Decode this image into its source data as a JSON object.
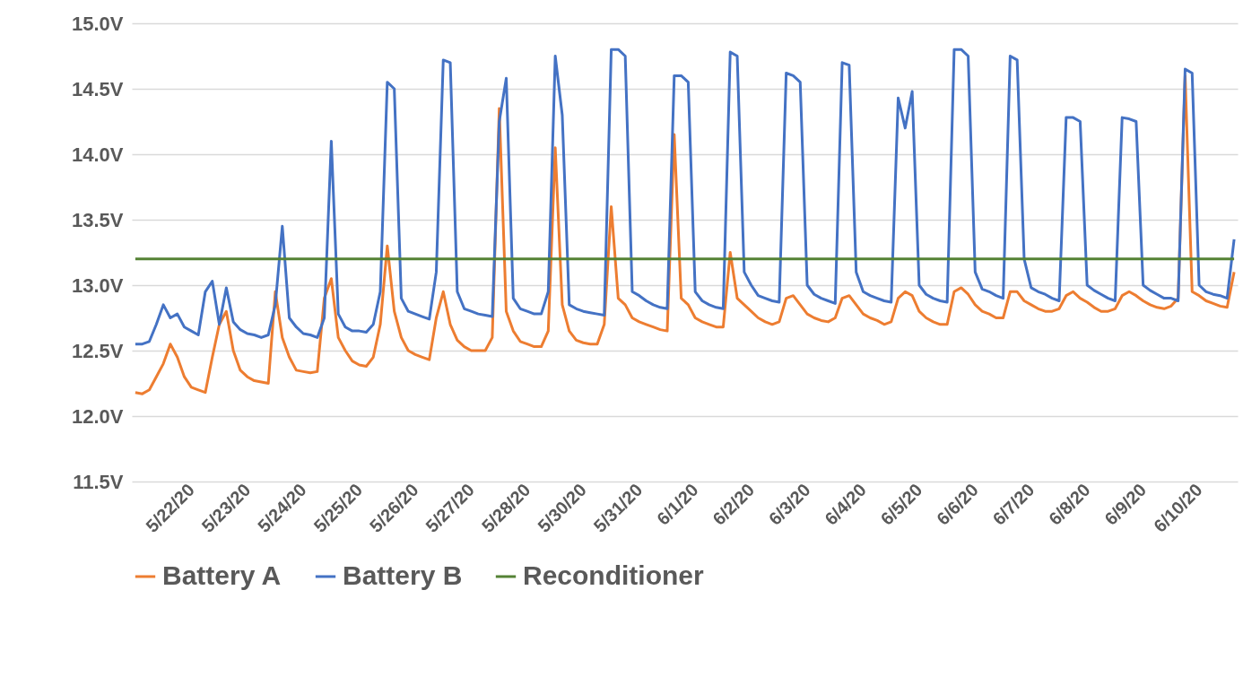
{
  "chart_data": {
    "type": "line",
    "categories": [
      null,
      null,
      null,
      null,
      null,
      null,
      null,
      null,
      "5/22/20",
      null,
      null,
      null,
      null,
      null,
      null,
      null,
      "5/23/20",
      null,
      null,
      null,
      null,
      null,
      null,
      null,
      "5/24/20",
      null,
      null,
      null,
      null,
      null,
      null,
      null,
      "5/25/20",
      null,
      null,
      null,
      null,
      null,
      null,
      null,
      "5/26/20",
      null,
      null,
      null,
      null,
      null,
      null,
      null,
      "5/27/20",
      null,
      null,
      null,
      null,
      null,
      null,
      null,
      "5/28/20",
      null,
      null,
      null,
      null,
      null,
      null,
      null,
      "5/30/20",
      null,
      null,
      null,
      null,
      null,
      null,
      null,
      "5/31/20",
      null,
      null,
      null,
      null,
      null,
      null,
      null,
      "6/1/20",
      null,
      null,
      null,
      null,
      null,
      null,
      null,
      "6/2/20",
      null,
      null,
      null,
      null,
      null,
      null,
      null,
      "6/3/20",
      null,
      null,
      null,
      null,
      null,
      null,
      null,
      "6/4/20",
      null,
      null,
      null,
      null,
      null,
      null,
      null,
      "6/5/20",
      null,
      null,
      null,
      null,
      null,
      null,
      null,
      "6/6/20",
      null,
      null,
      null,
      null,
      null,
      null,
      null,
      "6/7/20",
      null,
      null,
      null,
      null,
      null,
      null,
      null,
      "6/8/20",
      null,
      null,
      null,
      null,
      null,
      null,
      null,
      "6/9/20",
      null,
      null,
      null,
      null,
      null,
      null,
      null,
      "6/10/20",
      null,
      null,
      null,
      null,
      null
    ],
    "series": [
      {
        "name": "Battery A",
        "color": "#ed7d31",
        "values": [
          12.18,
          12.17,
          12.2,
          12.3,
          12.4,
          12.55,
          12.45,
          12.3,
          12.22,
          12.2,
          12.18,
          12.45,
          12.7,
          12.8,
          12.5,
          12.35,
          12.3,
          12.27,
          12.26,
          12.25,
          12.95,
          12.6,
          12.45,
          12.35,
          12.34,
          12.33,
          12.34,
          12.9,
          13.05,
          12.6,
          12.5,
          12.42,
          12.39,
          12.38,
          12.45,
          12.7,
          13.3,
          12.8,
          12.6,
          12.5,
          12.47,
          12.45,
          12.43,
          12.75,
          12.95,
          12.7,
          12.58,
          12.53,
          12.5,
          12.5,
          12.5,
          12.6,
          14.35,
          12.8,
          12.65,
          12.57,
          12.55,
          12.53,
          12.53,
          12.65,
          14.05,
          12.85,
          12.65,
          12.58,
          12.56,
          12.55,
          12.55,
          12.7,
          13.6,
          12.9,
          12.85,
          12.75,
          12.72,
          12.7,
          12.68,
          12.66,
          12.65,
          14.15,
          12.9,
          12.85,
          12.75,
          12.72,
          12.7,
          12.68,
          12.68,
          13.25,
          12.9,
          12.85,
          12.8,
          12.75,
          12.72,
          12.7,
          12.72,
          12.9,
          12.92,
          12.85,
          12.78,
          12.75,
          12.73,
          12.72,
          12.75,
          12.9,
          12.92,
          12.85,
          12.78,
          12.75,
          12.73,
          12.7,
          12.72,
          12.9,
          12.95,
          12.92,
          12.8,
          12.75,
          12.72,
          12.7,
          12.7,
          12.95,
          12.98,
          12.93,
          12.85,
          12.8,
          12.78,
          12.75,
          12.75,
          12.95,
          12.95,
          12.88,
          12.85,
          12.82,
          12.8,
          12.8,
          12.82,
          12.92,
          12.95,
          12.9,
          12.87,
          12.83,
          12.8,
          12.8,
          12.82,
          12.92,
          12.95,
          12.92,
          12.88,
          12.85,
          12.83,
          12.82,
          12.84,
          12.9,
          14.6,
          12.95,
          12.92,
          12.88,
          12.86,
          12.84,
          12.83,
          13.1
        ]
      },
      {
        "name": "Battery B",
        "color": "#4472c4",
        "values": [
          12.55,
          12.55,
          12.57,
          12.7,
          12.85,
          12.75,
          12.78,
          12.68,
          12.65,
          12.62,
          12.95,
          13.03,
          12.7,
          12.98,
          12.72,
          12.66,
          12.63,
          12.62,
          12.6,
          12.62,
          12.85,
          13.45,
          12.75,
          12.68,
          12.63,
          12.62,
          12.6,
          12.75,
          14.1,
          12.78,
          12.68,
          12.65,
          12.65,
          12.64,
          12.7,
          12.95,
          14.55,
          14.5,
          12.9,
          12.8,
          12.78,
          12.76,
          12.74,
          13.1,
          14.72,
          14.7,
          12.95,
          12.82,
          12.8,
          12.78,
          12.77,
          12.76,
          14.25,
          14.58,
          12.9,
          12.82,
          12.8,
          12.78,
          12.78,
          12.95,
          14.75,
          14.3,
          12.85,
          12.82,
          12.8,
          12.79,
          12.78,
          12.77,
          14.8,
          14.8,
          14.75,
          12.95,
          12.92,
          12.88,
          12.85,
          12.83,
          12.82,
          14.6,
          14.6,
          14.55,
          12.95,
          12.88,
          12.85,
          12.83,
          12.82,
          14.78,
          14.75,
          13.1,
          13.0,
          12.92,
          12.9,
          12.88,
          12.87,
          14.62,
          14.6,
          14.55,
          13.0,
          12.93,
          12.9,
          12.88,
          12.86,
          14.7,
          14.68,
          13.1,
          12.95,
          12.92,
          12.9,
          12.88,
          12.87,
          14.43,
          14.2,
          14.48,
          13.0,
          12.93,
          12.9,
          12.88,
          12.87,
          14.8,
          14.8,
          14.75,
          13.1,
          12.97,
          12.95,
          12.92,
          12.9,
          14.75,
          14.72,
          13.2,
          12.98,
          12.95,
          12.93,
          12.9,
          12.88,
          14.28,
          14.28,
          14.25,
          13.0,
          12.96,
          12.93,
          12.9,
          12.88,
          14.28,
          14.27,
          14.25,
          13.0,
          12.96,
          12.93,
          12.9,
          12.9,
          12.88,
          14.65,
          14.62,
          13.0,
          12.95,
          12.93,
          12.92,
          12.9,
          13.35
        ]
      },
      {
        "name": "Reconditioner",
        "color": "#548235",
        "values": [
          13.2,
          13.2,
          13.2,
          13.2,
          13.2,
          13.2,
          13.2,
          13.2,
          13.2,
          13.2,
          13.2,
          13.2,
          13.2,
          13.2,
          13.2,
          13.2,
          13.2,
          13.2,
          13.2,
          13.2,
          13.2,
          13.2,
          13.2,
          13.2,
          13.2,
          13.2,
          13.2,
          13.2,
          13.2,
          13.2,
          13.2,
          13.2,
          13.2,
          13.2,
          13.2,
          13.2,
          13.2,
          13.2,
          13.2,
          13.2,
          13.2,
          13.2,
          13.2,
          13.2,
          13.2,
          13.2,
          13.2,
          13.2,
          13.2,
          13.2,
          13.2,
          13.2,
          13.2,
          13.2,
          13.2,
          13.2,
          13.2,
          13.2,
          13.2,
          13.2,
          13.2,
          13.2,
          13.2,
          13.2,
          13.2,
          13.2,
          13.2,
          13.2,
          13.2,
          13.2,
          13.2,
          13.2,
          13.2,
          13.2,
          13.2,
          13.2,
          13.2,
          13.2,
          13.2,
          13.2,
          13.2,
          13.2,
          13.2,
          13.2,
          13.2,
          13.2,
          13.2,
          13.2,
          13.2,
          13.2,
          13.2,
          13.2,
          13.2,
          13.2,
          13.2,
          13.2,
          13.2,
          13.2,
          13.2,
          13.2,
          13.2,
          13.2,
          13.2,
          13.2,
          13.2,
          13.2,
          13.2,
          13.2,
          13.2,
          13.2,
          13.2,
          13.2,
          13.2,
          13.2,
          13.2,
          13.2,
          13.2,
          13.2,
          13.2,
          13.2,
          13.2,
          13.2,
          13.2,
          13.2,
          13.2,
          13.2,
          13.2,
          13.2,
          13.2,
          13.2,
          13.2,
          13.2,
          13.2,
          13.2,
          13.2,
          13.2,
          13.2,
          13.2,
          13.2,
          13.2,
          13.2,
          13.2,
          13.2,
          13.2,
          13.2,
          13.2,
          13.2,
          13.2,
          13.2,
          13.2,
          13.2,
          13.2,
          13.2,
          13.2,
          13.2,
          13.2,
          13.2,
          13.2
        ]
      }
    ],
    "ylim": [
      11.5,
      15.0
    ],
    "yticks": [
      {
        "value": 11.5,
        "label": "11.5V"
      },
      {
        "value": 12.0,
        "label": "12.0V"
      },
      {
        "value": 12.5,
        "label": "12.5V"
      },
      {
        "value": 13.0,
        "label": "13.0V"
      },
      {
        "value": 13.5,
        "label": "13.5V"
      },
      {
        "value": 14.0,
        "label": "14.0V"
      },
      {
        "value": 14.5,
        "label": "14.5V"
      },
      {
        "value": 15.0,
        "label": "15.0V"
      }
    ],
    "grid": "y",
    "legend": "bottom"
  }
}
